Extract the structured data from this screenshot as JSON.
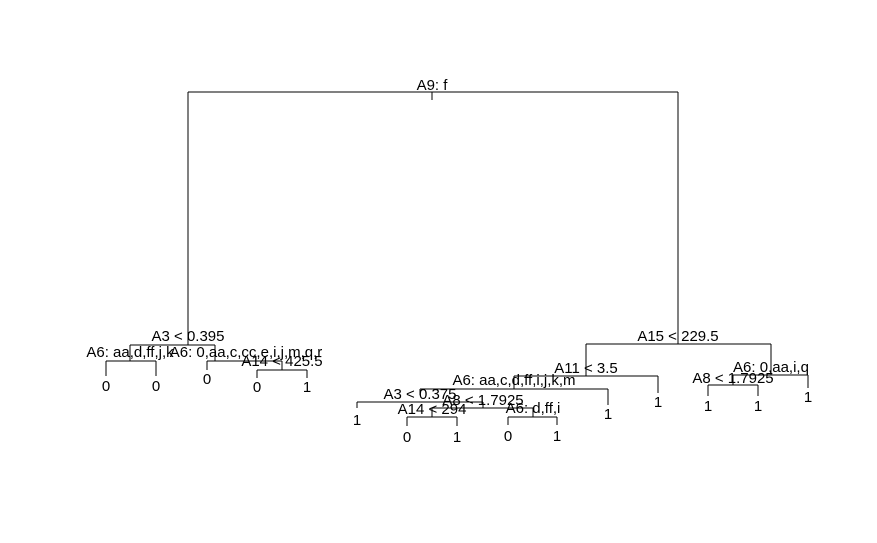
{
  "tree": {
    "root_split": "A9: f",
    "left_branch": {
      "split": "A3 < 0.395",
      "left_split": "A6: aa,d,ff,j,k",
      "left_leaves": [
        "0",
        "0"
      ],
      "right_split": "A6: 0,aa,c,cc,e,i,j,m,q,r",
      "right_left_leaf": "0",
      "right_right_split": "A14 < 425.5",
      "right_right_leaves": [
        "0",
        "1"
      ]
    },
    "right_branch": {
      "split": "A15 < 229.5",
      "left_split": "A11 < 3.5",
      "left_left_split": "A6: aa,c,d,ff,i,j,k,m",
      "a3_split": "A3 < 0.375",
      "a3_left_leaf": "1",
      "a8_split": "A8 < 1.7925",
      "a14_split": "A14 < 294",
      "a14_leaves": [
        "0",
        "1"
      ],
      "a6_split": "A6: d,ff,i",
      "a6_leaves": [
        "0",
        "1"
      ],
      "a11_left_right_leaf": "1",
      "a11_right_leaf": "1",
      "right_split": "A6: 0,aa,i,q",
      "r_left_split": "A8 < 1.7925",
      "r_left_leaves": [
        "1",
        "1"
      ],
      "r_right_leaf": "1"
    }
  }
}
